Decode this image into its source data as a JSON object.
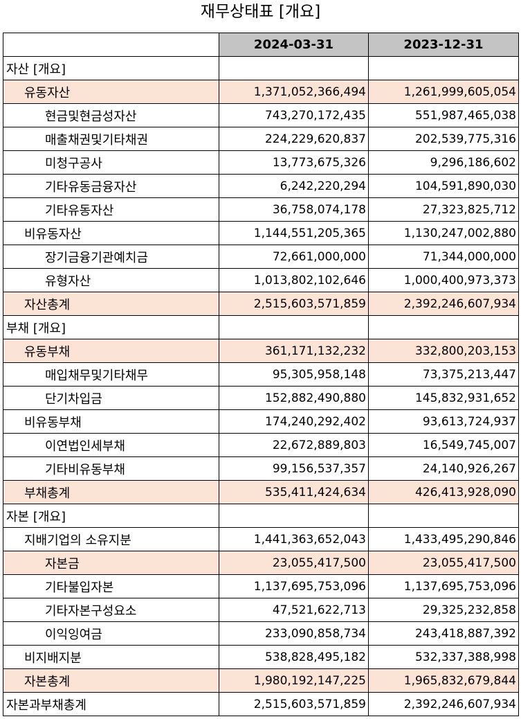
{
  "title": "재무상태표 [개요]",
  "header": {
    "col0": "",
    "col1": "2024-03-31",
    "col2": "2023-12-31"
  },
  "rows": [
    {
      "label": "자산 [개요]",
      "level": 0,
      "highlight": false,
      "v1": "",
      "v2": ""
    },
    {
      "label": "유동자산",
      "level": 1,
      "highlight": true,
      "v1": "1,371,052,366,494",
      "v2": "1,261,999,605,054"
    },
    {
      "label": "현금및현금성자산",
      "level": 2,
      "highlight": false,
      "v1": "743,270,172,435",
      "v2": "551,987,465,038"
    },
    {
      "label": "매출채권및기타채권",
      "level": 2,
      "highlight": false,
      "v1": "224,229,620,837",
      "v2": "202,539,775,316"
    },
    {
      "label": "미청구공사",
      "level": 2,
      "highlight": false,
      "v1": "13,773,675,326",
      "v2": "9,296,186,602"
    },
    {
      "label": "기타유동금융자산",
      "level": 2,
      "highlight": false,
      "v1": "6,242,220,294",
      "v2": "104,591,890,030"
    },
    {
      "label": "기타유동자산",
      "level": 2,
      "highlight": false,
      "v1": "36,758,074,178",
      "v2": "27,323,825,712"
    },
    {
      "label": "비유동자산",
      "level": 1,
      "highlight": false,
      "v1": "1,144,551,205,365",
      "v2": "1,130,247,002,880"
    },
    {
      "label": "장기금융기관예치금",
      "level": 2,
      "highlight": false,
      "v1": "72,661,000,000",
      "v2": "71,344,000,000"
    },
    {
      "label": "유형자산",
      "level": 2,
      "highlight": false,
      "v1": "1,013,802,102,646",
      "v2": "1,000,400,973,373"
    },
    {
      "label": "자산총계",
      "level": 1,
      "highlight": true,
      "v1": "2,515,603,571,859",
      "v2": "2,392,246,607,934"
    },
    {
      "label": "부채 [개요]",
      "level": 0,
      "highlight": false,
      "v1": "",
      "v2": ""
    },
    {
      "label": "유동부채",
      "level": 1,
      "highlight": true,
      "v1": "361,171,132,232",
      "v2": "332,800,203,153"
    },
    {
      "label": "매입채무및기타채무",
      "level": 2,
      "highlight": false,
      "v1": "95,305,958,148",
      "v2": "73,375,213,447"
    },
    {
      "label": "단기차입금",
      "level": 2,
      "highlight": false,
      "v1": "152,882,490,880",
      "v2": "145,832,931,652"
    },
    {
      "label": "비유동부채",
      "level": 1,
      "highlight": false,
      "v1": "174,240,292,402",
      "v2": "93,613,724,937"
    },
    {
      "label": "이연법인세부채",
      "level": 2,
      "highlight": false,
      "v1": "22,672,889,803",
      "v2": "16,549,745,007"
    },
    {
      "label": "기타비유동부채",
      "level": 2,
      "highlight": false,
      "v1": "99,156,537,357",
      "v2": "24,140,926,267"
    },
    {
      "label": "부채총계",
      "level": 1,
      "highlight": true,
      "v1": "535,411,424,634",
      "v2": "426,413,928,090"
    },
    {
      "label": "자본 [개요]",
      "level": 0,
      "highlight": false,
      "v1": "",
      "v2": ""
    },
    {
      "label": "지배기업의 소유지분",
      "level": 1,
      "highlight": false,
      "v1": "1,441,363,652,043",
      "v2": "1,433,495,290,846"
    },
    {
      "label": "자본금",
      "level": 2,
      "highlight": true,
      "v1": "23,055,417,500",
      "v2": "23,055,417,500"
    },
    {
      "label": "기타불입자본",
      "level": 2,
      "highlight": false,
      "v1": "1,137,695,753,096",
      "v2": "1,137,695,753,096"
    },
    {
      "label": "기타자본구성요소",
      "level": 2,
      "highlight": false,
      "v1": "47,521,622,713",
      "v2": "29,325,232,858"
    },
    {
      "label": "이익잉여금",
      "level": 2,
      "highlight": false,
      "v1": "233,090,858,734",
      "v2": "243,418,887,392"
    },
    {
      "label": "비지배지분",
      "level": 1,
      "highlight": false,
      "v1": "538,828,495,182",
      "v2": "532,337,388,998"
    },
    {
      "label": "자본총계",
      "level": 1,
      "highlight": true,
      "v1": "1,980,192,147,225",
      "v2": "1,965,832,679,844"
    },
    {
      "label": "자본과부채총계",
      "level": 0,
      "highlight": false,
      "v1": "2,515,603,571,859",
      "v2": "2,392,246,607,934"
    }
  ]
}
